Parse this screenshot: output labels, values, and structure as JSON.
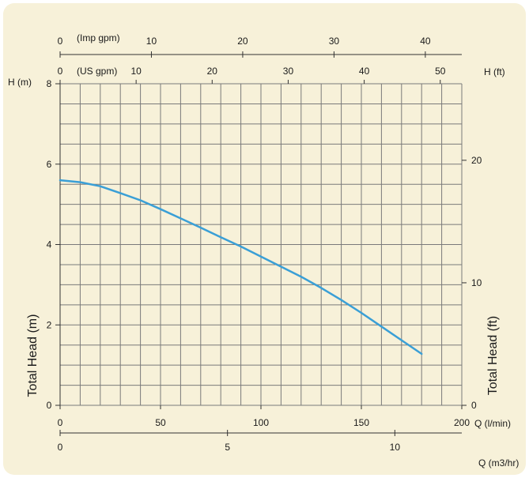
{
  "chart_data": {
    "type": "line",
    "series": [
      {
        "x": [
          0,
          10,
          20,
          30,
          40,
          50,
          60,
          70,
          80,
          90,
          100,
          110,
          120,
          130,
          140,
          150,
          160,
          170,
          180
        ],
        "y": [
          5.6,
          5.55,
          5.45,
          5.28,
          5.1,
          4.88,
          4.65,
          4.42,
          4.18,
          3.95,
          3.7,
          3.45,
          3.2,
          2.92,
          2.62,
          2.3,
          1.96,
          1.62,
          1.28
        ]
      }
    ],
    "xlabel": "Q (l/min)",
    "xlim": [
      0,
      200
    ],
    "x_ticks": [
      "0",
      "50",
      "100",
      "150",
      "200"
    ],
    "ylabel_left": "Total Head (m)",
    "ylabel_left_unit": "H (m)",
    "ylim": [
      0,
      8
    ],
    "y_ticks_left": [
      "0",
      "2",
      "4",
      "6",
      "8"
    ],
    "ylabel_right": "Total Head (ft)",
    "ylabel_right_unit": "H (ft)",
    "y_ticks_right": [
      {
        "label": "0",
        "value": 0
      },
      {
        "label": "10",
        "value": 10
      },
      {
        "label": "20",
        "value": 20
      }
    ],
    "top_axis_imp": {
      "label": "(Imp gpm)",
      "ticks": [
        {
          "label": "0",
          "value": 0
        },
        {
          "label": "10",
          "value": 10
        },
        {
          "label": "20",
          "value": 20
        },
        {
          "label": "30",
          "value": 30
        },
        {
          "label": "40",
          "value": 40
        }
      ]
    },
    "top_axis_us": {
      "label": "(US gpm)",
      "ticks": [
        {
          "label": "0",
          "value": 0
        },
        {
          "label": "10",
          "value": 10
        },
        {
          "label": "20",
          "value": 20
        },
        {
          "label": "30",
          "value": 30
        },
        {
          "label": "40",
          "value": 40
        },
        {
          "label": "50",
          "value": 50
        }
      ]
    },
    "bottom_axis_m3": {
      "label": "Q (m3/hr)",
      "ticks": [
        {
          "label": "0",
          "value": 0
        },
        {
          "label": "5",
          "value": 5
        },
        {
          "label": "10",
          "value": 10
        }
      ]
    },
    "grid": true,
    "colors": {
      "curve": "#3a9fd6",
      "grid": "#7a7a7a",
      "background": "#f7f1d9"
    }
  }
}
